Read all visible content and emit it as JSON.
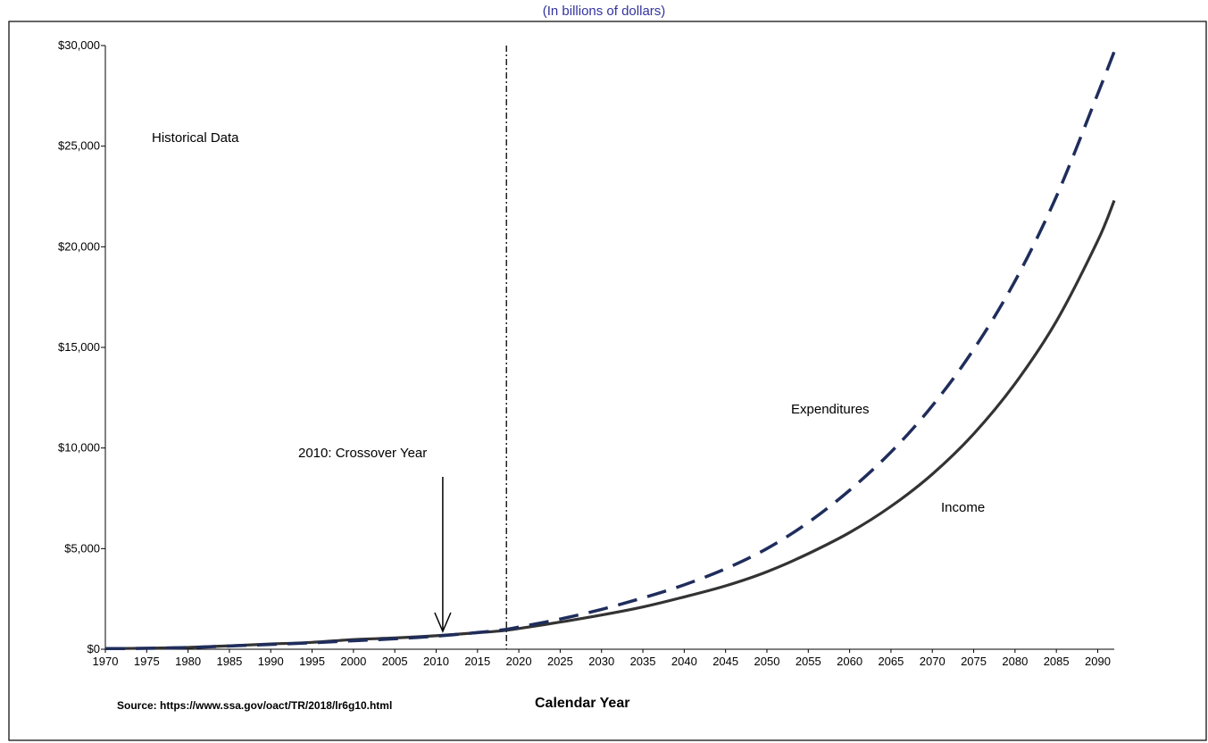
{
  "chart_data": {
    "type": "line",
    "subtitle": "(In billions of dollars)",
    "xlabel": "Calendar Year",
    "ylabel": "",
    "xlim": [
      1970,
      2092
    ],
    "ylim": [
      0,
      30000
    ],
    "x_ticks": [
      1970,
      1975,
      1980,
      1985,
      1990,
      1995,
      2000,
      2005,
      2010,
      2015,
      2020,
      2025,
      2030,
      2035,
      2040,
      2045,
      2050,
      2055,
      2060,
      2065,
      2070,
      2075,
      2080,
      2085,
      2090
    ],
    "y_ticks": [
      {
        "value": 0,
        "label": "$0"
      },
      {
        "value": 5000,
        "label": "$5,000"
      },
      {
        "value": 10000,
        "label": "$10,000"
      },
      {
        "value": 15000,
        "label": "$15,000"
      },
      {
        "value": 20000,
        "label": "$20,000"
      },
      {
        "value": 25000,
        "label": "$25,000"
      },
      {
        "value": 30000,
        "label": "$30,000"
      }
    ],
    "grid": false,
    "series": [
      {
        "name": "Income",
        "style": "solid",
        "color": "#333333",
        "points": [
          [
            1970,
            30
          ],
          [
            1975,
            50
          ],
          [
            1980,
            90
          ],
          [
            1985,
            170
          ],
          [
            1990,
            260
          ],
          [
            1995,
            340
          ],
          [
            2000,
            480
          ],
          [
            2005,
            560
          ],
          [
            2010,
            670
          ],
          [
            2015,
            820
          ],
          [
            2018,
            920
          ],
          [
            2020,
            1030
          ],
          [
            2025,
            1350
          ],
          [
            2030,
            1700
          ],
          [
            2035,
            2100
          ],
          [
            2040,
            2600
          ],
          [
            2045,
            3150
          ],
          [
            2050,
            3850
          ],
          [
            2055,
            4750
          ],
          [
            2060,
            5800
          ],
          [
            2065,
            7100
          ],
          [
            2070,
            8700
          ],
          [
            2075,
            10700
          ],
          [
            2080,
            13200
          ],
          [
            2085,
            16300
          ],
          [
            2090,
            20300
          ],
          [
            2092,
            22300
          ]
        ]
      },
      {
        "name": "Expenditures",
        "style": "dashed",
        "color": "#1f2d5c",
        "points": [
          [
            1970,
            30
          ],
          [
            1975,
            45
          ],
          [
            1980,
            85
          ],
          [
            1985,
            160
          ],
          [
            1990,
            240
          ],
          [
            1995,
            320
          ],
          [
            2000,
            420
          ],
          [
            2005,
            520
          ],
          [
            2010,
            650
          ],
          [
            2015,
            830
          ],
          [
            2018,
            960
          ],
          [
            2020,
            1100
          ],
          [
            2025,
            1500
          ],
          [
            2030,
            1980
          ],
          [
            2035,
            2550
          ],
          [
            2040,
            3200
          ],
          [
            2045,
            4000
          ],
          [
            2050,
            5000
          ],
          [
            2055,
            6300
          ],
          [
            2060,
            7900
          ],
          [
            2065,
            9800
          ],
          [
            2070,
            12100
          ],
          [
            2075,
            14900
          ],
          [
            2080,
            18300
          ],
          [
            2085,
            22500
          ],
          [
            2090,
            27600
          ],
          [
            2092,
            29700
          ]
        ]
      }
    ],
    "projection_start_year": 2018.5,
    "annotations": {
      "historical": "Historical Data",
      "crossover": "2010: Crossover Year",
      "crossover_year": 2010.8,
      "expenditures": "Expenditures",
      "income": "Income"
    },
    "source": "Source: https://www.ssa.gov/oact/TR/2018/lr6g10.html"
  }
}
